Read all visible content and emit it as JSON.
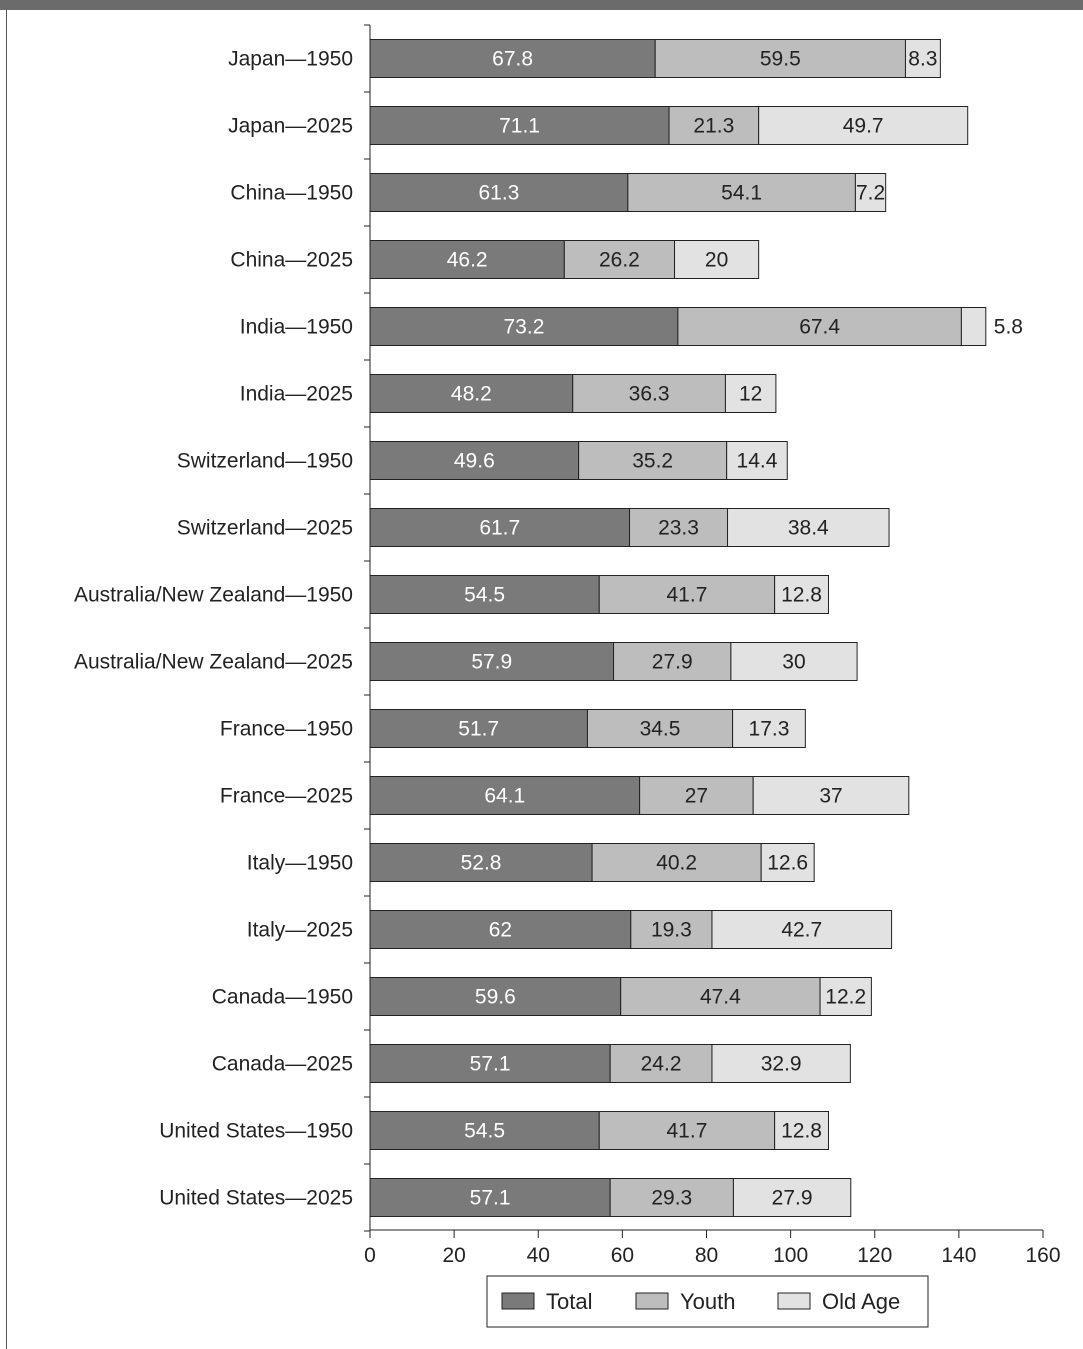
{
  "colors": {
    "total": "#7a7a7a",
    "youth": "#bdbdbd",
    "old_age": "#e2e2e2",
    "frame": "#6b6b6b"
  },
  "chart_data": {
    "type": "bar",
    "orientation": "horizontal",
    "stacked": true,
    "categories": [
      "Japan—1950",
      "Japan—2025",
      "China—1950",
      "China—2025",
      "India—1950",
      "India—2025",
      "Switzerland—1950",
      "Switzerland—2025",
      "Australia/New Zealand—1950",
      "Australia/New Zealand—2025",
      "France—1950",
      "France—2025",
      "Italy—1950",
      "Italy—2025",
      "Canada—1950",
      "Canada—2025",
      "United States—1950",
      "United States—2025"
    ],
    "series": [
      {
        "name": "Total",
        "values": [
          67.8,
          71.1,
          61.3,
          46.2,
          73.2,
          48.2,
          49.6,
          61.7,
          54.5,
          57.9,
          51.7,
          64.1,
          52.8,
          62,
          59.6,
          57.1,
          54.5,
          57.1
        ]
      },
      {
        "name": "Youth",
        "values": [
          59.5,
          21.3,
          54.1,
          26.2,
          67.4,
          36.3,
          35.2,
          23.3,
          41.7,
          27.9,
          34.5,
          27,
          40.2,
          19.3,
          47.4,
          24.2,
          41.7,
          29.3
        ]
      },
      {
        "name": "Old Age",
        "values": [
          8.3,
          49.7,
          7.2,
          20,
          5.8,
          12,
          14.4,
          38.4,
          12.8,
          30,
          17.3,
          37,
          12.6,
          42.7,
          12.2,
          32.9,
          12.8,
          27.9
        ]
      }
    ],
    "xlim": [
      0,
      160
    ],
    "xticks": [
      0,
      20,
      40,
      60,
      80,
      100,
      120,
      140,
      160
    ],
    "title": "",
    "xlabel": "",
    "ylabel": "",
    "grid": false,
    "legend": {
      "position": "bottom-center",
      "entries": [
        "Total",
        "Youth",
        "Old Age"
      ]
    }
  }
}
